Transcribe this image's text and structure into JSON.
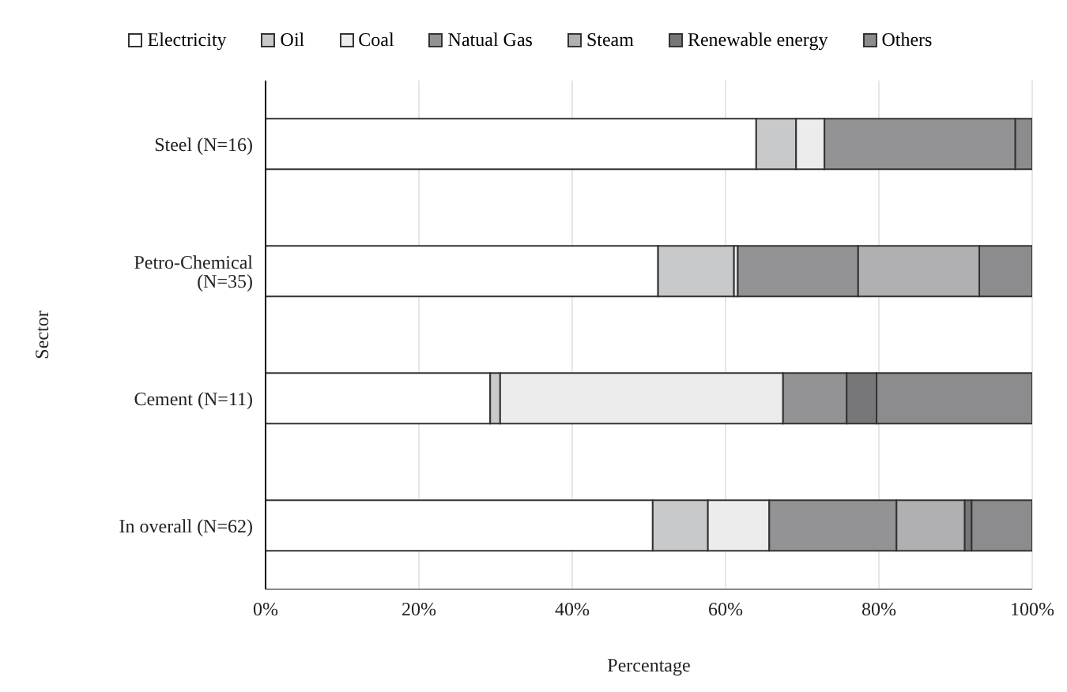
{
  "chart_data": {
    "type": "bar",
    "orientation": "horizontal",
    "stacked": true,
    "xlabel": "Percentage",
    "ylabel": "Sector",
    "categories": [
      "Steel (N=16)",
      "Petro-Chemical (N=35)",
      "Cement (N=11)",
      "In overall (N=62)"
    ],
    "series": [
      {
        "name": "Electricity",
        "color": "#ffffff",
        "values": [
          64.0,
          51.2,
          29.3,
          50.5
        ]
      },
      {
        "name": "Oil",
        "color": "#c8c9cb",
        "values": [
          5.2,
          9.9,
          1.3,
          7.2
        ]
      },
      {
        "name": "Coal",
        "color": "#ececec",
        "values": [
          3.7,
          0.5,
          36.9,
          8.0
        ]
      },
      {
        "name": "Natual Gas",
        "color": "#939396",
        "values": [
          24.9,
          15.7,
          8.3,
          16.6
        ]
      },
      {
        "name": "Steam",
        "color": "#b0b0b2",
        "values": [
          0,
          15.8,
          0,
          8.9
        ]
      },
      {
        "name": "Renewable energy",
        "color": "#77777a",
        "values": [
          0,
          0,
          3.9,
          0.9
        ]
      },
      {
        "name": "Others",
        "color": "#8c8c8e",
        "values": [
          2.2,
          6.9,
          20.3,
          7.9
        ]
      }
    ],
    "xlim": [
      0,
      100
    ],
    "xticks": [
      {
        "value": 0,
        "label": "0%"
      },
      {
        "value": 20,
        "label": "20%"
      },
      {
        "value": 40,
        "label": "40%"
      },
      {
        "value": 60,
        "label": "60%"
      },
      {
        "value": 80,
        "label": "80%"
      },
      {
        "value": 100,
        "label": "100%"
      }
    ],
    "grid": "x",
    "legend": "top"
  }
}
